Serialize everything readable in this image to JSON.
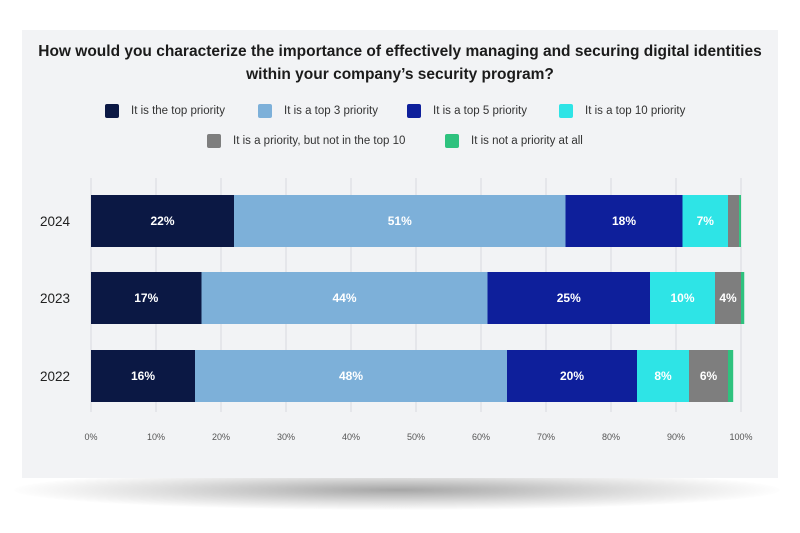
{
  "colors": {
    "top_priority": "#0b1844",
    "top_3": "#7db0d9",
    "top_5": "#0e1f9b",
    "top_10": "#2ee4e6",
    "priority_not_top_10": "#7e7e7e",
    "not_priority": "#2ec27e"
  },
  "chart_data": {
    "type": "bar",
    "orientation": "horizontal",
    "stacked": true,
    "title": "How would you characterize the importance of effectively managing and securing digital identities within your company’s security program?",
    "title_lines": [
      "How would you characterize the importance of effectively managing and securing digital identities",
      "within your company’s security program?"
    ],
    "categories": [
      "2024",
      "2023",
      "2022"
    ],
    "xlim": [
      0,
      100
    ],
    "x_ticks": [
      "0%",
      "10%",
      "20%",
      "30%",
      "40%",
      "50%",
      "60%",
      "70%",
      "80%",
      "90%",
      "100%"
    ],
    "grid": true,
    "legend_position": "top",
    "series": [
      {
        "name": "It is the top priority",
        "color": "#0b1844",
        "values": [
          22,
          17,
          16
        ],
        "labels": [
          "22%",
          "17%",
          "16%"
        ]
      },
      {
        "name": "It is a top 3 priority",
        "color": "#7db0d9",
        "values": [
          51,
          44,
          48
        ],
        "labels": [
          "51%",
          "44%",
          "48%"
        ]
      },
      {
        "name": "It is a top 5 priority",
        "color": "#0e1f9b",
        "values": [
          18,
          25,
          20
        ],
        "labels": [
          "18%",
          "25%",
          "20%"
        ]
      },
      {
        "name": "It is a top 10 priority",
        "color": "#2ee4e6",
        "values": [
          7,
          10,
          8
        ],
        "labels": [
          "7%",
          "10%",
          "8%"
        ]
      },
      {
        "name": "It is a priority, but not in the top 10",
        "color": "#7e7e7e",
        "values": [
          1.7,
          4,
          6
        ],
        "labels": [
          "",
          "4%",
          "6%"
        ]
      },
      {
        "name": "It is not a priority at all",
        "color": "#2ec27e",
        "values": [
          0.3,
          0.5,
          0.8
        ],
        "labels": [
          "",
          "",
          ""
        ]
      }
    ]
  }
}
